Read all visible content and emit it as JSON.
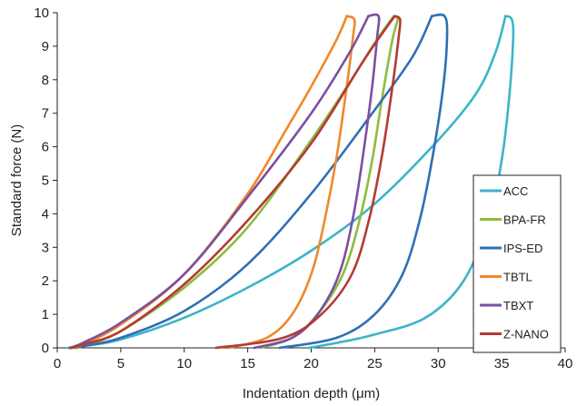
{
  "chart_data": {
    "type": "line",
    "title": "",
    "xlabel": "Indentation depth (μm)",
    "ylabel": "Standard force (N)",
    "xlim": [
      0,
      40
    ],
    "ylim": [
      0,
      10
    ],
    "xticks": [
      0,
      5,
      10,
      15,
      20,
      25,
      30,
      35,
      40
    ],
    "yticks": [
      0,
      1,
      2,
      3,
      4,
      5,
      6,
      7,
      8,
      9,
      10
    ],
    "grid": false,
    "legend_position": "bottom-right",
    "series": [
      {
        "name": "ACC",
        "color": "#3cb4c8",
        "loading": [
          [
            0.8,
            0
          ],
          [
            2,
            0.05
          ],
          [
            5,
            0.25
          ],
          [
            10,
            0.9
          ],
          [
            15,
            1.8
          ],
          [
            20,
            2.9
          ],
          [
            25,
            4.3
          ],
          [
            30,
            6.2
          ],
          [
            33,
            7.6
          ],
          [
            34.5,
            8.8
          ],
          [
            35.3,
            9.9
          ]
        ],
        "unloading": [
          [
            35.3,
            9.9
          ],
          [
            35.8,
            9.8
          ],
          [
            35.9,
            9.2
          ],
          [
            35.6,
            7.5
          ],
          [
            35,
            5.6
          ],
          [
            34,
            3.8
          ],
          [
            32,
            2.0
          ],
          [
            29,
            0.9
          ],
          [
            25,
            0.4
          ],
          [
            22,
            0.15
          ],
          [
            19.8,
            0
          ]
        ]
      },
      {
        "name": "BPA-FR",
        "color": "#8cbd3f",
        "loading": [
          [
            1,
            0
          ],
          [
            2,
            0.05
          ],
          [
            5,
            0.5
          ],
          [
            10,
            1.8
          ],
          [
            15,
            3.6
          ],
          [
            20,
            6.2
          ],
          [
            23,
            7.9
          ],
          [
            25,
            9.1
          ],
          [
            26.5,
            9.9
          ]
        ],
        "unloading": [
          [
            26.5,
            9.9
          ],
          [
            26.8,
            9.8
          ],
          [
            26.4,
            9.2
          ],
          [
            25.6,
            7.5
          ],
          [
            24.8,
            5.6
          ],
          [
            23.8,
            3.8
          ],
          [
            22.5,
            2.2
          ],
          [
            20.5,
            1.0
          ],
          [
            18.5,
            0.3
          ],
          [
            16,
            0
          ]
        ]
      },
      {
        "name": "IPS-ED",
        "color": "#2f6fb5",
        "loading": [
          [
            1,
            0
          ],
          [
            2,
            0.05
          ],
          [
            5,
            0.3
          ],
          [
            10,
            1.1
          ],
          [
            15,
            2.5
          ],
          [
            20,
            4.6
          ],
          [
            25,
            7.1
          ],
          [
            28,
            8.7
          ],
          [
            29.5,
            9.9
          ]
        ],
        "unloading": [
          [
            29.5,
            9.9
          ],
          [
            30.5,
            9.9
          ],
          [
            30.7,
            9.3
          ],
          [
            30.4,
            7.8
          ],
          [
            29.6,
            5.8
          ],
          [
            28.6,
            3.9
          ],
          [
            27.2,
            2.2
          ],
          [
            25,
            1.0
          ],
          [
            22,
            0.3
          ],
          [
            17.5,
            0
          ]
        ]
      },
      {
        "name": "TBTL",
        "color": "#f0882a",
        "loading": [
          [
            1,
            0
          ],
          [
            2,
            0.1
          ],
          [
            5,
            0.7
          ],
          [
            10,
            2.2
          ],
          [
            15,
            4.6
          ],
          [
            18,
            6.5
          ],
          [
            20,
            7.8
          ],
          [
            22,
            9.2
          ],
          [
            22.8,
            9.9
          ]
        ],
        "unloading": [
          [
            22.8,
            9.9
          ],
          [
            23.4,
            9.8
          ],
          [
            23.3,
            9.3
          ],
          [
            22.8,
            7.8
          ],
          [
            22.0,
            5.7
          ],
          [
            21.0,
            3.7
          ],
          [
            20.0,
            2.2
          ],
          [
            18.5,
            1.0
          ],
          [
            16.5,
            0.3
          ],
          [
            13.5,
            0
          ]
        ]
      },
      {
        "name": "TBXT",
        "color": "#7c4fa0",
        "loading": [
          [
            1,
            0
          ],
          [
            2,
            0.15
          ],
          [
            5,
            0.75
          ],
          [
            10,
            2.2
          ],
          [
            15,
            4.5
          ],
          [
            20,
            7.0
          ],
          [
            23,
            8.8
          ],
          [
            24.5,
            9.9
          ]
        ],
        "unloading": [
          [
            24.5,
            9.9
          ],
          [
            25.3,
            9.9
          ],
          [
            25.2,
            9.3
          ],
          [
            24.8,
            7.8
          ],
          [
            24.1,
            5.8
          ],
          [
            23.3,
            3.9
          ],
          [
            22.2,
            2.2
          ],
          [
            20.5,
            1.0
          ],
          [
            18.5,
            0.3
          ],
          [
            15.5,
            0
          ]
        ]
      },
      {
        "name": "Z-NANO",
        "color": "#b53a32",
        "loading": [
          [
            1,
            0
          ],
          [
            2,
            0.1
          ],
          [
            5,
            0.5
          ],
          [
            10,
            1.9
          ],
          [
            15,
            3.8
          ],
          [
            20,
            6.1
          ],
          [
            24,
            8.5
          ],
          [
            26,
            9.6
          ],
          [
            26.6,
            9.9
          ]
        ],
        "unloading": [
          [
            26.6,
            9.9
          ],
          [
            27,
            9.8
          ],
          [
            26.9,
            9.3
          ],
          [
            26.4,
            7.8
          ],
          [
            25.6,
            5.8
          ],
          [
            24.6,
            3.9
          ],
          [
            23.2,
            2.2
          ],
          [
            20.8,
            1.0
          ],
          [
            17.8,
            0.3
          ],
          [
            12.5,
            0
          ]
        ]
      }
    ]
  }
}
